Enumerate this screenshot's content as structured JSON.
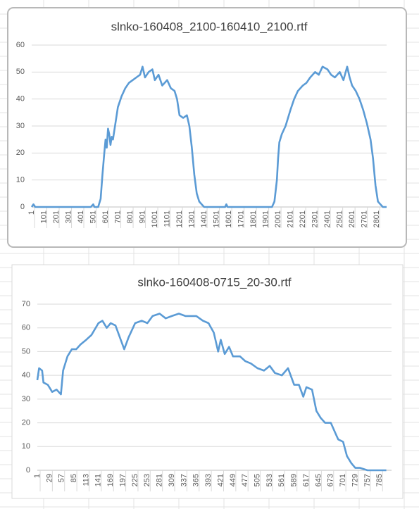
{
  "chart_data": [
    {
      "type": "line",
      "title": "slnko-160408_2100-160410_2100.rtf",
      "color": "#5b9bd5",
      "grid": true,
      "x": [
        1,
        15,
        30,
        45,
        100,
        200,
        300,
        400,
        480,
        500,
        510,
        540,
        560,
        575,
        590,
        600,
        610,
        620,
        630,
        640,
        650,
        660,
        680,
        700,
        730,
        760,
        790,
        820,
        850,
        880,
        900,
        920,
        950,
        980,
        1000,
        1030,
        1060,
        1100,
        1130,
        1160,
        1180,
        1200,
        1230,
        1260,
        1280,
        1300,
        1320,
        1340,
        1360,
        1380,
        1400,
        1450,
        1570,
        1580,
        1590,
        1700,
        1800,
        1900,
        1950,
        1970,
        1990,
        2000,
        2010,
        2030,
        2060,
        2100,
        2130,
        2160,
        2200,
        2230,
        2260,
        2300,
        2330,
        2360,
        2400,
        2430,
        2460,
        2500,
        2530,
        2560,
        2580,
        2600,
        2630,
        2660,
        2690,
        2720,
        2750,
        2770,
        2790,
        2810,
        2830,
        2850,
        2880
      ],
      "values": [
        0,
        1,
        0,
        0,
        0,
        0,
        0,
        0,
        0,
        1,
        0,
        0,
        3,
        12,
        20,
        25,
        22,
        29,
        27,
        23,
        26,
        25,
        31,
        37,
        41,
        44,
        46,
        47,
        48,
        49,
        52,
        48,
        50,
        51,
        47,
        49,
        45,
        47,
        44,
        43,
        40,
        34,
        33,
        34,
        30,
        22,
        12,
        5,
        2,
        1,
        0,
        0,
        0,
        1,
        0,
        0,
        0,
        0,
        0,
        2,
        10,
        18,
        24,
        27,
        30,
        36,
        40,
        43,
        45,
        46,
        48,
        50,
        49,
        52,
        51,
        49,
        48,
        50,
        47,
        52,
        48,
        45,
        43,
        40,
        36,
        31,
        25,
        18,
        8,
        2,
        1,
        0,
        0
      ],
      "xlim": [
        1,
        2880
      ],
      "xticks": [
        1,
        101,
        201,
        301,
        401,
        501,
        601,
        701,
        801,
        901,
        1001,
        1101,
        1201,
        1301,
        1401,
        1501,
        1601,
        1701,
        1801,
        1901,
        2001,
        2101,
        2201,
        2301,
        2401,
        2501,
        2601,
        2701,
        2801
      ],
      "ylim": [
        0,
        60
      ],
      "yticks": [
        0,
        10,
        20,
        30,
        40,
        50,
        60
      ]
    },
    {
      "type": "line",
      "title": "slnko-160408-0715_20-30.rtf",
      "color": "#5b9bd5",
      "grid": true,
      "x": [
        1,
        5,
        12,
        15,
        25,
        35,
        45,
        55,
        60,
        70,
        80,
        90,
        100,
        113,
        125,
        141,
        150,
        160,
        169,
        180,
        190,
        200,
        210,
        225,
        240,
        253,
        265,
        281,
        295,
        309,
        325,
        340,
        355,
        365,
        380,
        393,
        405,
        415,
        421,
        430,
        440,
        449,
        465,
        477,
        490,
        505,
        520,
        533,
        545,
        561,
        575,
        589,
        600,
        610,
        617,
        630,
        640,
        650,
        660,
        673,
        685,
        690,
        701,
        710,
        720,
        729,
        740,
        757,
        785,
        800
      ],
      "values": [
        38,
        43,
        42,
        37,
        36,
        33,
        34,
        32,
        42,
        48,
        51,
        51,
        53,
        55,
        57,
        62,
        63,
        60,
        62,
        61,
        56,
        51,
        56,
        62,
        63,
        62,
        65,
        66,
        64,
        65,
        66,
        65,
        65,
        65,
        63,
        62,
        58,
        50,
        55,
        49,
        52,
        48,
        48,
        46,
        45,
        43,
        42,
        44,
        41,
        40,
        43,
        36,
        36,
        31,
        35,
        34,
        25,
        22,
        20,
        20,
        15,
        13,
        12,
        6,
        3,
        1,
        1,
        0,
        0,
        0
      ],
      "xlim": [
        1,
        812
      ],
      "xticks": [
        1,
        29,
        57,
        85,
        113,
        141,
        169,
        197,
        225,
        253,
        281,
        309,
        337,
        365,
        393,
        421,
        449,
        477,
        505,
        533,
        561,
        589,
        617,
        645,
        673,
        701,
        729,
        757,
        785
      ],
      "ylim": [
        0,
        70
      ],
      "yticks": [
        0,
        10,
        20,
        30,
        40,
        50,
        60,
        70
      ]
    }
  ]
}
